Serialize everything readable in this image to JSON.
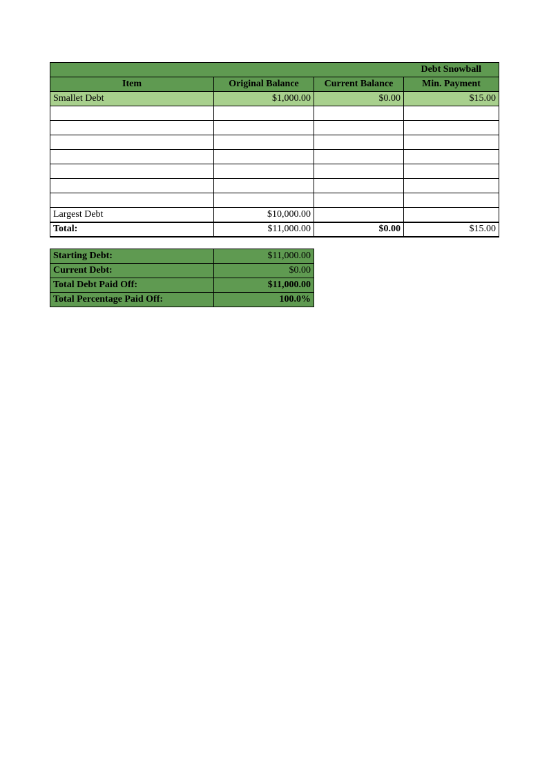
{
  "colors": {
    "header_bg": "#5f9a51",
    "highlight_bg": "#a8d08d",
    "border": "#000000",
    "page_bg": "#ffffff"
  },
  "mainTable": {
    "title": "Debt Snowball",
    "columns": {
      "item": "Item",
      "original": "Original Balance",
      "current": "Current Balance",
      "min": "Min. Payment"
    },
    "rows": [
      {
        "item": "Smallet Debt",
        "original": "$1,000.00",
        "current": "$0.00",
        "min": "$15.00",
        "highlight": true
      },
      {
        "item": "",
        "original": "",
        "current": "",
        "min": "",
        "highlight": false
      },
      {
        "item": "",
        "original": "",
        "current": "",
        "min": "",
        "highlight": false
      },
      {
        "item": "",
        "original": "",
        "current": "",
        "min": "",
        "highlight": false
      },
      {
        "item": "",
        "original": "",
        "current": "",
        "min": "",
        "highlight": false
      },
      {
        "item": "",
        "original": "",
        "current": "",
        "min": "",
        "highlight": false
      },
      {
        "item": "",
        "original": "",
        "current": "",
        "min": "",
        "highlight": false
      },
      {
        "item": "",
        "original": "",
        "current": "",
        "min": "",
        "highlight": false
      },
      {
        "item": "Largest Debt",
        "original": "$10,000.00",
        "current": "",
        "min": "",
        "highlight": false
      }
    ],
    "total": {
      "label": "Total:",
      "original": "$11,000.00",
      "current": "$0.00",
      "min": "$15.00"
    }
  },
  "summary": {
    "rows": [
      {
        "label": "Starting Debt:",
        "value": "$11,000.00",
        "bold": false
      },
      {
        "label": "Current Debt:",
        "value": "$0.00",
        "bold": false
      },
      {
        "label": "Total Debt Paid Off:",
        "value": "$11,000.00",
        "bold": true
      },
      {
        "label": "Total Percentage Paid Off:",
        "value": "100.0%",
        "bold": true
      }
    ]
  }
}
